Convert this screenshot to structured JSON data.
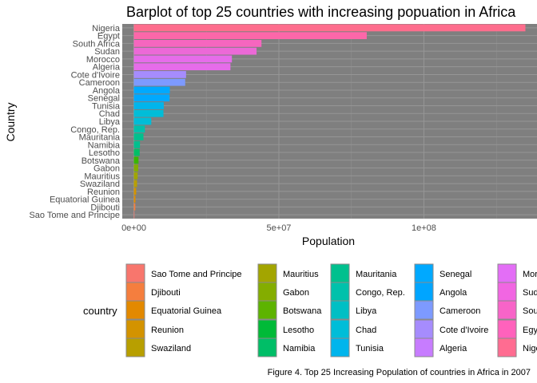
{
  "chart_data": {
    "type": "bar",
    "orientation": "horizontal",
    "title": "Barplot of top 25 countries with increasing popuation in Africa",
    "xlabel": "Population",
    "ylabel": "Country",
    "legend_title": "country",
    "caption": "Figure 4. Top 25 Increasing Population of countries in Africa in 2007",
    "xlim": [
      -4000000,
      139000000
    ],
    "x_ticks": [
      0,
      50000000,
      100000000
    ],
    "x_tick_labels": [
      "0e+00",
      "5e+07",
      "1e+08"
    ],
    "grid": true,
    "legend_position": "bottom",
    "categories": [
      "Nigeria",
      "Egypt",
      "South Africa",
      "Sudan",
      "Morocco",
      "Algeria",
      "Cote d'Ivoire",
      "Cameroon",
      "Angola",
      "Senegal",
      "Tunisia",
      "Chad",
      "Libya",
      "Congo, Rep.",
      "Mauritania",
      "Namibia",
      "Lesotho",
      "Botswana",
      "Gabon",
      "Mauritius",
      "Swaziland",
      "Reunion",
      "Equatorial Guinea",
      "Djibouti",
      "Sao Tome and Principe"
    ],
    "values": [
      135000000,
      80300000,
      44000000,
      42300000,
      33800000,
      33300000,
      18000000,
      17700000,
      12400000,
      12300000,
      10300000,
      10200000,
      6000000,
      3800000,
      3300000,
      2100000,
      2000000,
      1600000,
      1500000,
      1300000,
      1100000,
      800000,
      550000,
      500000,
      200000
    ],
    "colors": [
      "#FE6D8D",
      "#FC67A9",
      "#F666BF",
      "#EC69D7",
      "#E66CEA",
      "#E66CEA",
      "#A68CFD",
      "#7D9AFF",
      "#00A9FF",
      "#00A9FF",
      "#00B5EC",
      "#00BDD8",
      "#00BDD8",
      "#00C1AB",
      "#00C08E",
      "#00C08E",
      "#00BE67",
      "#39B600",
      "#84AD00",
      "#A0A600",
      "#B89F00",
      "#D39300",
      "#DF8C00",
      "#F57E3E",
      "#F8766D"
    ],
    "legend": [
      [
        {
          "label": "Sao Tome and Principe",
          "color": "#F8766D"
        },
        {
          "label": "Djibouti",
          "color": "#F57E3E"
        },
        {
          "label": "Equatorial Guinea",
          "color": "#E38900"
        },
        {
          "label": "Reunion",
          "color": "#D39300"
        },
        {
          "label": "Swaziland",
          "color": "#B89F00"
        }
      ],
      [
        {
          "label": "Mauritius",
          "color": "#A3A500"
        },
        {
          "label": "Gabon",
          "color": "#84AD00"
        },
        {
          "label": "Botswana",
          "color": "#5DB300"
        },
        {
          "label": "Lesotho",
          "color": "#00BA38"
        },
        {
          "label": "Namibia",
          "color": "#00BE67"
        }
      ],
      [
        {
          "label": "Mauritania",
          "color": "#00C08E"
        },
        {
          "label": "Congo, Rep.",
          "color": "#00C1AB"
        },
        {
          "label": "Libya",
          "color": "#00BFC4"
        },
        {
          "label": "Chad",
          "color": "#00BDD8"
        },
        {
          "label": "Tunisia",
          "color": "#00B5EC"
        }
      ],
      [
        {
          "label": "Senegal",
          "color": "#00A9FF"
        },
        {
          "label": "Angola",
          "color": "#00A5FF"
        },
        {
          "label": "Cameroon",
          "color": "#7D9AFF"
        },
        {
          "label": "Cote d'Ivoire",
          "color": "#A68CFD"
        },
        {
          "label": "Algeria",
          "color": "#C77CFF"
        }
      ],
      [
        {
          "label": "Morocco",
          "color": "#E36EF6"
        },
        {
          "label": "Sudan",
          "color": "#F166E2"
        },
        {
          "label": "South Africa",
          "color": "#F864C8"
        },
        {
          "label": "Egypt",
          "color": "#FF62BC"
        },
        {
          "label": "Nigeria",
          "color": "#FF6C91"
        }
      ]
    ],
    "panel_background": "#7F7F7F"
  }
}
